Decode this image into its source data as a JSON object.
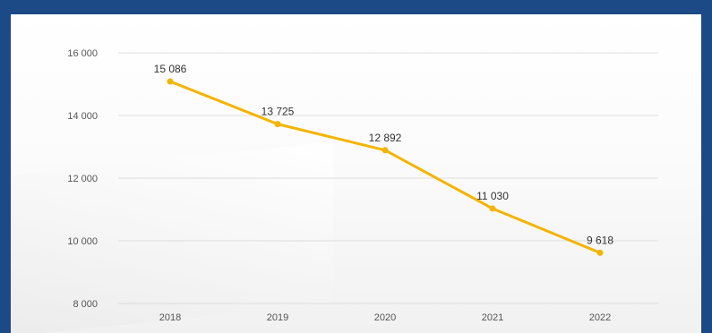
{
  "chart_data": {
    "type": "line",
    "title": "",
    "xlabel": "",
    "ylabel": "",
    "categories": [
      "2018",
      "2019",
      "2020",
      "2021",
      "2022"
    ],
    "series": [
      {
        "values": [
          15086,
          13725,
          12892,
          11030,
          9618
        ],
        "labels": [
          "15 086",
          "13 725",
          "12 892",
          "11 030",
          "9 618"
        ],
        "color": "#f4b400"
      }
    ],
    "ylim": [
      8000,
      16000
    ],
    "yticks": [
      8000,
      10000,
      12000,
      14000,
      16000
    ],
    "ytick_labels": [
      "8 000",
      "10 000",
      "12 000",
      "14 000",
      "16 000"
    ],
    "grid": true,
    "legend": "none",
    "colors": {
      "background": "#1b4a86",
      "gridline": "#dddddd",
      "line": "#f4b400",
      "text": "#555555"
    }
  }
}
